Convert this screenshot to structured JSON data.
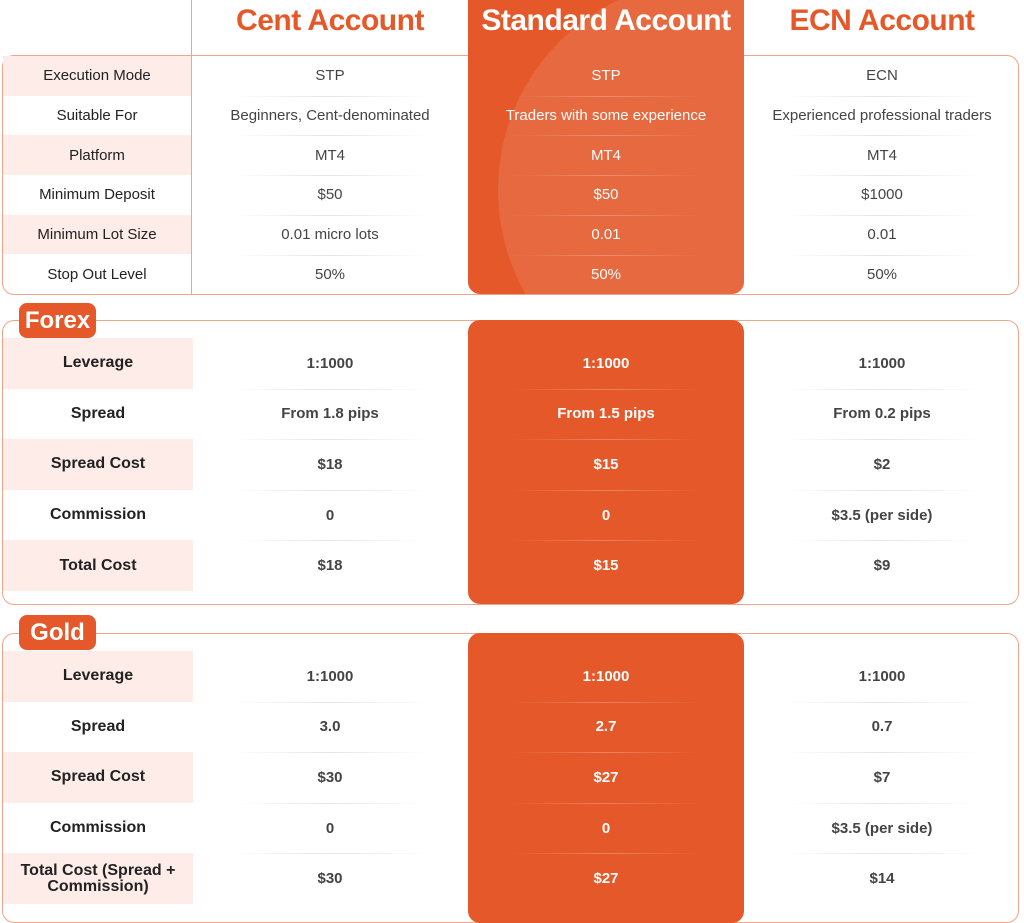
{
  "accounts": [
    "Cent Account",
    "Standard Account",
    "ECN Account"
  ],
  "colors": {
    "accent": "#E5582A",
    "label_bg": "#FDECE8",
    "border": "#F0A58A"
  },
  "overview": {
    "rows": [
      {
        "label": "Execution Mode",
        "values": [
          "STP",
          "STP",
          "ECN"
        ]
      },
      {
        "label": "Suitable For",
        "values": [
          "Beginners, Cent-denominated",
          "Traders with some experience",
          "Experienced professional traders"
        ]
      },
      {
        "label": "Platform",
        "values": [
          "MT4",
          "MT4",
          "MT4"
        ]
      },
      {
        "label": "Minimum Deposit",
        "values": [
          "$50",
          "$50",
          "$1000"
        ]
      },
      {
        "label": "Minimum Lot Size",
        "values": [
          "0.01 micro lots",
          "0.01",
          "0.01"
        ]
      },
      {
        "label": "Stop Out Level",
        "values": [
          "50%",
          "50%",
          "50%"
        ]
      }
    ]
  },
  "forex": {
    "title": "Forex",
    "rows": [
      {
        "label": "Leverage",
        "values": [
          "1:1000",
          "1:1000",
          "1:1000"
        ]
      },
      {
        "label": "Spread",
        "values": [
          "From 1.8 pips",
          "From 1.5 pips",
          "From 0.2 pips"
        ]
      },
      {
        "label": "Spread Cost",
        "values": [
          "$18",
          "$15",
          "$2"
        ]
      },
      {
        "label": "Commission",
        "values": [
          "0",
          "0",
          "$3.5 (per side)"
        ]
      },
      {
        "label": "Total Cost",
        "values": [
          "$18",
          "$15",
          "$9"
        ]
      }
    ]
  },
  "gold": {
    "title": "Gold",
    "rows": [
      {
        "label": "Leverage",
        "values": [
          "1:1000",
          "1:1000",
          "1:1000"
        ]
      },
      {
        "label": "Spread",
        "values": [
          "3.0",
          "2.7",
          "0.7"
        ]
      },
      {
        "label": "Spread Cost",
        "values": [
          "$30",
          "$27",
          "$7"
        ]
      },
      {
        "label": "Commission",
        "values": [
          "0",
          "0",
          "$3.5 (per side)"
        ]
      },
      {
        "label": "Total Cost (Spread + Commission)",
        "values": [
          "$30",
          "$27",
          "$14"
        ]
      }
    ]
  }
}
